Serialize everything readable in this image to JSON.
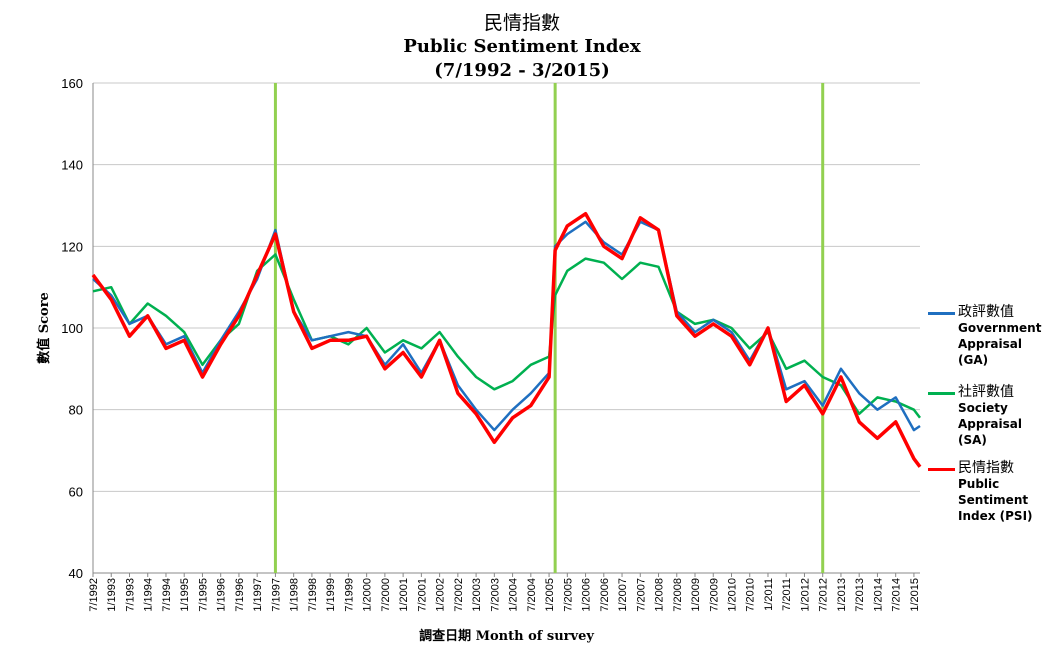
{
  "chart_data": {
    "type": "line",
    "title": "民情指數",
    "subtitle": "Public Sentiment Index",
    "subtitle2": "(7/1992 - 3/2015)",
    "ylabel": "數值 Score",
    "xlabel": "調查日期  Month of survey",
    "ylim": [
      40,
      160
    ],
    "yticks": [
      "40",
      "60",
      "80",
      "100",
      "120",
      "140",
      "160"
    ],
    "x_start": "7/1992",
    "x_end": "3/2015",
    "xticks": [
      "7/1992",
      "1/1993",
      "7/1993",
      "1/1994",
      "7/1994",
      "1/1995",
      "7/1995",
      "1/1996",
      "7/1996",
      "1/1997",
      "7/1997",
      "1/1998",
      "7/1998",
      "1/1999",
      "7/1999",
      "1/2000",
      "7/2000",
      "1/2001",
      "7/2001",
      "1/2002",
      "7/2002",
      "1/2003",
      "7/2003",
      "1/2004",
      "7/2004",
      "1/2005",
      "7/2005",
      "1/2006",
      "7/2006",
      "1/2007",
      "7/2007",
      "1/2008",
      "7/2008",
      "1/2009",
      "7/2009",
      "1/2010",
      "7/2010",
      "1/2011",
      "7/2011",
      "1/2012",
      "7/2012",
      "1/2013",
      "7/2013",
      "1/2014",
      "7/2014",
      "1/2015"
    ],
    "grid": true,
    "vertical_markers": [
      "7/1997",
      "3/2005",
      "7/2012"
    ],
    "marker_color": "#92d050",
    "legend_position": "right",
    "series": [
      {
        "name": "政評數值",
        "name_en": "Government Appraisal (GA)",
        "color": "#1f6fc0",
        "points": [
          [
            "7/1992",
            112
          ],
          [
            "1/1993",
            108
          ],
          [
            "7/1993",
            101
          ],
          [
            "1/1994",
            103
          ],
          [
            "7/1994",
            96
          ],
          [
            "1/1995",
            98
          ],
          [
            "7/1995",
            89
          ],
          [
            "1/1996",
            97
          ],
          [
            "7/1996",
            104
          ],
          [
            "1/1997",
            112
          ],
          [
            "7/1997",
            124
          ],
          [
            "1/1998",
            104
          ],
          [
            "7/1998",
            97
          ],
          [
            "1/1999",
            98
          ],
          [
            "7/1999",
            99
          ],
          [
            "1/2000",
            98
          ],
          [
            "7/2000",
            91
          ],
          [
            "1/2001",
            96
          ],
          [
            "7/2001",
            89
          ],
          [
            "1/2002",
            97
          ],
          [
            "7/2002",
            86
          ],
          [
            "1/2003",
            80
          ],
          [
            "7/2003",
            75
          ],
          [
            "1/2004",
            80
          ],
          [
            "7/2004",
            84
          ],
          [
            "1/2005",
            89
          ],
          [
            "3/2005",
            120
          ],
          [
            "7/2005",
            123
          ],
          [
            "1/2006",
            126
          ],
          [
            "7/2006",
            121
          ],
          [
            "1/2007",
            118
          ],
          [
            "7/2007",
            126
          ],
          [
            "1/2008",
            124
          ],
          [
            "7/2008",
            104
          ],
          [
            "1/2009",
            99
          ],
          [
            "7/2009",
            102
          ],
          [
            "1/2010",
            99
          ],
          [
            "7/2010",
            92
          ],
          [
            "1/2011",
            100
          ],
          [
            "7/2011",
            85
          ],
          [
            "1/2012",
            87
          ],
          [
            "7/2012",
            81
          ],
          [
            "1/2013",
            90
          ],
          [
            "7/2013",
            84
          ],
          [
            "1/2014",
            80
          ],
          [
            "7/2014",
            83
          ],
          [
            "1/2015",
            75
          ],
          [
            "3/2015",
            76
          ]
        ]
      },
      {
        "name": "社評數值",
        "name_en": "Society Appraisal (SA)",
        "color": "#00b050",
        "points": [
          [
            "7/1992",
            109
          ],
          [
            "1/1993",
            110
          ],
          [
            "7/1993",
            101
          ],
          [
            "1/1994",
            106
          ],
          [
            "7/1994",
            103
          ],
          [
            "1/1995",
            99
          ],
          [
            "7/1995",
            91
          ],
          [
            "1/1996",
            97
          ],
          [
            "7/1996",
            101
          ],
          [
            "1/1997",
            114
          ],
          [
            "7/1997",
            118
          ],
          [
            "1/1998",
            107
          ],
          [
            "7/1998",
            97
          ],
          [
            "1/1999",
            98
          ],
          [
            "7/1999",
            96
          ],
          [
            "1/2000",
            100
          ],
          [
            "7/2000",
            94
          ],
          [
            "1/2001",
            97
          ],
          [
            "7/2001",
            95
          ],
          [
            "1/2002",
            99
          ],
          [
            "7/2002",
            93
          ],
          [
            "1/2003",
            88
          ],
          [
            "7/2003",
            85
          ],
          [
            "1/2004",
            87
          ],
          [
            "7/2004",
            91
          ],
          [
            "1/2005",
            93
          ],
          [
            "3/2005",
            108
          ],
          [
            "7/2005",
            114
          ],
          [
            "1/2006",
            117
          ],
          [
            "7/2006",
            116
          ],
          [
            "1/2007",
            112
          ],
          [
            "7/2007",
            116
          ],
          [
            "1/2008",
            115
          ],
          [
            "7/2008",
            104
          ],
          [
            "1/2009",
            101
          ],
          [
            "7/2009",
            102
          ],
          [
            "1/2010",
            100
          ],
          [
            "7/2010",
            95
          ],
          [
            "1/2011",
            99
          ],
          [
            "7/2011",
            90
          ],
          [
            "1/2012",
            92
          ],
          [
            "7/2012",
            88
          ],
          [
            "1/2013",
            86
          ],
          [
            "7/2013",
            79
          ],
          [
            "1/2014",
            83
          ],
          [
            "7/2014",
            82
          ],
          [
            "1/2015",
            80
          ],
          [
            "3/2015",
            78
          ]
        ]
      },
      {
        "name": "民情指數",
        "name_en": "Public Sentiment Index (PSI)",
        "color": "#ff0000",
        "points": [
          [
            "7/1992",
            113
          ],
          [
            "1/1993",
            107
          ],
          [
            "7/1993",
            98
          ],
          [
            "1/1994",
            103
          ],
          [
            "7/1994",
            95
          ],
          [
            "1/1995",
            97
          ],
          [
            "7/1995",
            88
          ],
          [
            "1/1996",
            96
          ],
          [
            "7/1996",
            103
          ],
          [
            "1/1997",
            113
          ],
          [
            "7/1997",
            123
          ],
          [
            "1/1998",
            104
          ],
          [
            "7/1998",
            95
          ],
          [
            "1/1999",
            97
          ],
          [
            "7/1999",
            97
          ],
          [
            "1/2000",
            98
          ],
          [
            "7/2000",
            90
          ],
          [
            "1/2001",
            94
          ],
          [
            "7/2001",
            88
          ],
          [
            "1/2002",
            97
          ],
          [
            "7/2002",
            84
          ],
          [
            "1/2003",
            79
          ],
          [
            "7/2003",
            72
          ],
          [
            "1/2004",
            78
          ],
          [
            "7/2004",
            81
          ],
          [
            "1/2005",
            88
          ],
          [
            "3/2005",
            119
          ],
          [
            "7/2005",
            125
          ],
          [
            "1/2006",
            128
          ],
          [
            "7/2006",
            120
          ],
          [
            "1/2007",
            117
          ],
          [
            "7/2007",
            127
          ],
          [
            "1/2008",
            124
          ],
          [
            "7/2008",
            103
          ],
          [
            "1/2009",
            98
          ],
          [
            "7/2009",
            101
          ],
          [
            "1/2010",
            98
          ],
          [
            "7/2010",
            91
          ],
          [
            "1/2011",
            100
          ],
          [
            "7/2011",
            82
          ],
          [
            "1/2012",
            86
          ],
          [
            "7/2012",
            79
          ],
          [
            "1/2013",
            88
          ],
          [
            "7/2013",
            77
          ],
          [
            "1/2014",
            73
          ],
          [
            "7/2014",
            77
          ],
          [
            "1/2015",
            68
          ],
          [
            "3/2015",
            66
          ]
        ]
      }
    ]
  }
}
